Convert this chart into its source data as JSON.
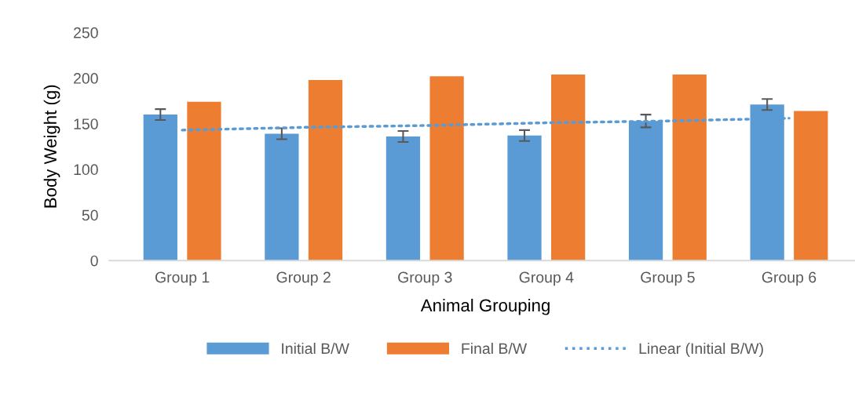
{
  "chart_data": {
    "type": "bar",
    "xlabel": "Animal Grouping",
    "ylabel": "Body Weight (g)",
    "categories": [
      "Group 1",
      "Group 2",
      "Group 3",
      "Group 4",
      "Group 5",
      "Group 6"
    ],
    "series": [
      {
        "name": "Initial B/W",
        "color": "#5b9bd5",
        "values": [
          160,
          139,
          136,
          137,
          153,
          171
        ],
        "errors": [
          6,
          6,
          6,
          6,
          7,
          6
        ]
      },
      {
        "name": "Final B/W",
        "color": "#ed7d31",
        "values": [
          174,
          198,
          202,
          204,
          204,
          164
        ]
      },
      {
        "name": "Linear (Initial B/W)",
        "type": "line",
        "line_style": "dotted",
        "color": "#5b9bd5",
        "values": [
          143,
          146,
          148,
          151,
          153,
          156
        ]
      }
    ],
    "ylim": [
      0,
      250
    ],
    "yticks": [
      0,
      50,
      100,
      150,
      200,
      250
    ],
    "grid": false,
    "legend": "bottom"
  }
}
